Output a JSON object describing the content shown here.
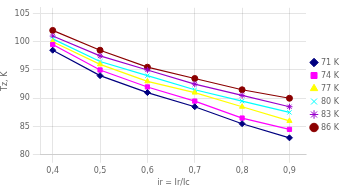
{
  "chart_data": {
    "type": "line",
    "x": [
      0.4,
      0.5,
      0.6,
      0.7,
      0.8,
      0.9
    ],
    "series": [
      {
        "name": "71 K",
        "color": "#000080",
        "marker": "diamond",
        "values": [
          98.5,
          94.0,
          91.0,
          88.5,
          85.5,
          83.0
        ]
      },
      {
        "name": "74 K",
        "color": "#FF00FF",
        "marker": "square",
        "values": [
          99.5,
          95.0,
          92.0,
          89.5,
          86.5,
          84.5
        ]
      },
      {
        "name": "77 K",
        "color": "#FFFF00",
        "marker": "triangle",
        "values": [
          100.0,
          96.0,
          93.0,
          91.0,
          88.5,
          86.0
        ]
      },
      {
        "name": "80 K",
        "color": "#00FFFF",
        "marker": "x",
        "values": [
          100.5,
          96.5,
          94.0,
          91.5,
          89.5,
          87.5
        ]
      },
      {
        "name": "83 K",
        "color": "#9900CC",
        "marker": "star",
        "values": [
          101.0,
          97.5,
          95.0,
          92.5,
          90.5,
          88.5
        ]
      },
      {
        "name": "86 K",
        "color": "#8B0000",
        "marker": "circle",
        "values": [
          102.0,
          98.5,
          95.5,
          93.5,
          91.5,
          90.0
        ]
      }
    ],
    "x_label": "ir = Ir/Ic",
    "y_label": "Tz, K",
    "xlim": [
      0.375,
      0.935
    ],
    "ylim": [
      80,
      106
    ],
    "xticks": [
      {
        "value": 0.4,
        "label": "0,4"
      },
      {
        "value": 0.5,
        "label": "0,5"
      },
      {
        "value": 0.6,
        "label": "0,6"
      },
      {
        "value": 0.7,
        "label": "0,7"
      },
      {
        "value": 0.8,
        "label": "0,8"
      },
      {
        "value": 0.9,
        "label": "0,9"
      }
    ],
    "yticks": [
      80,
      85,
      90,
      95,
      100,
      105
    ],
    "grid": true,
    "legend": "right"
  }
}
